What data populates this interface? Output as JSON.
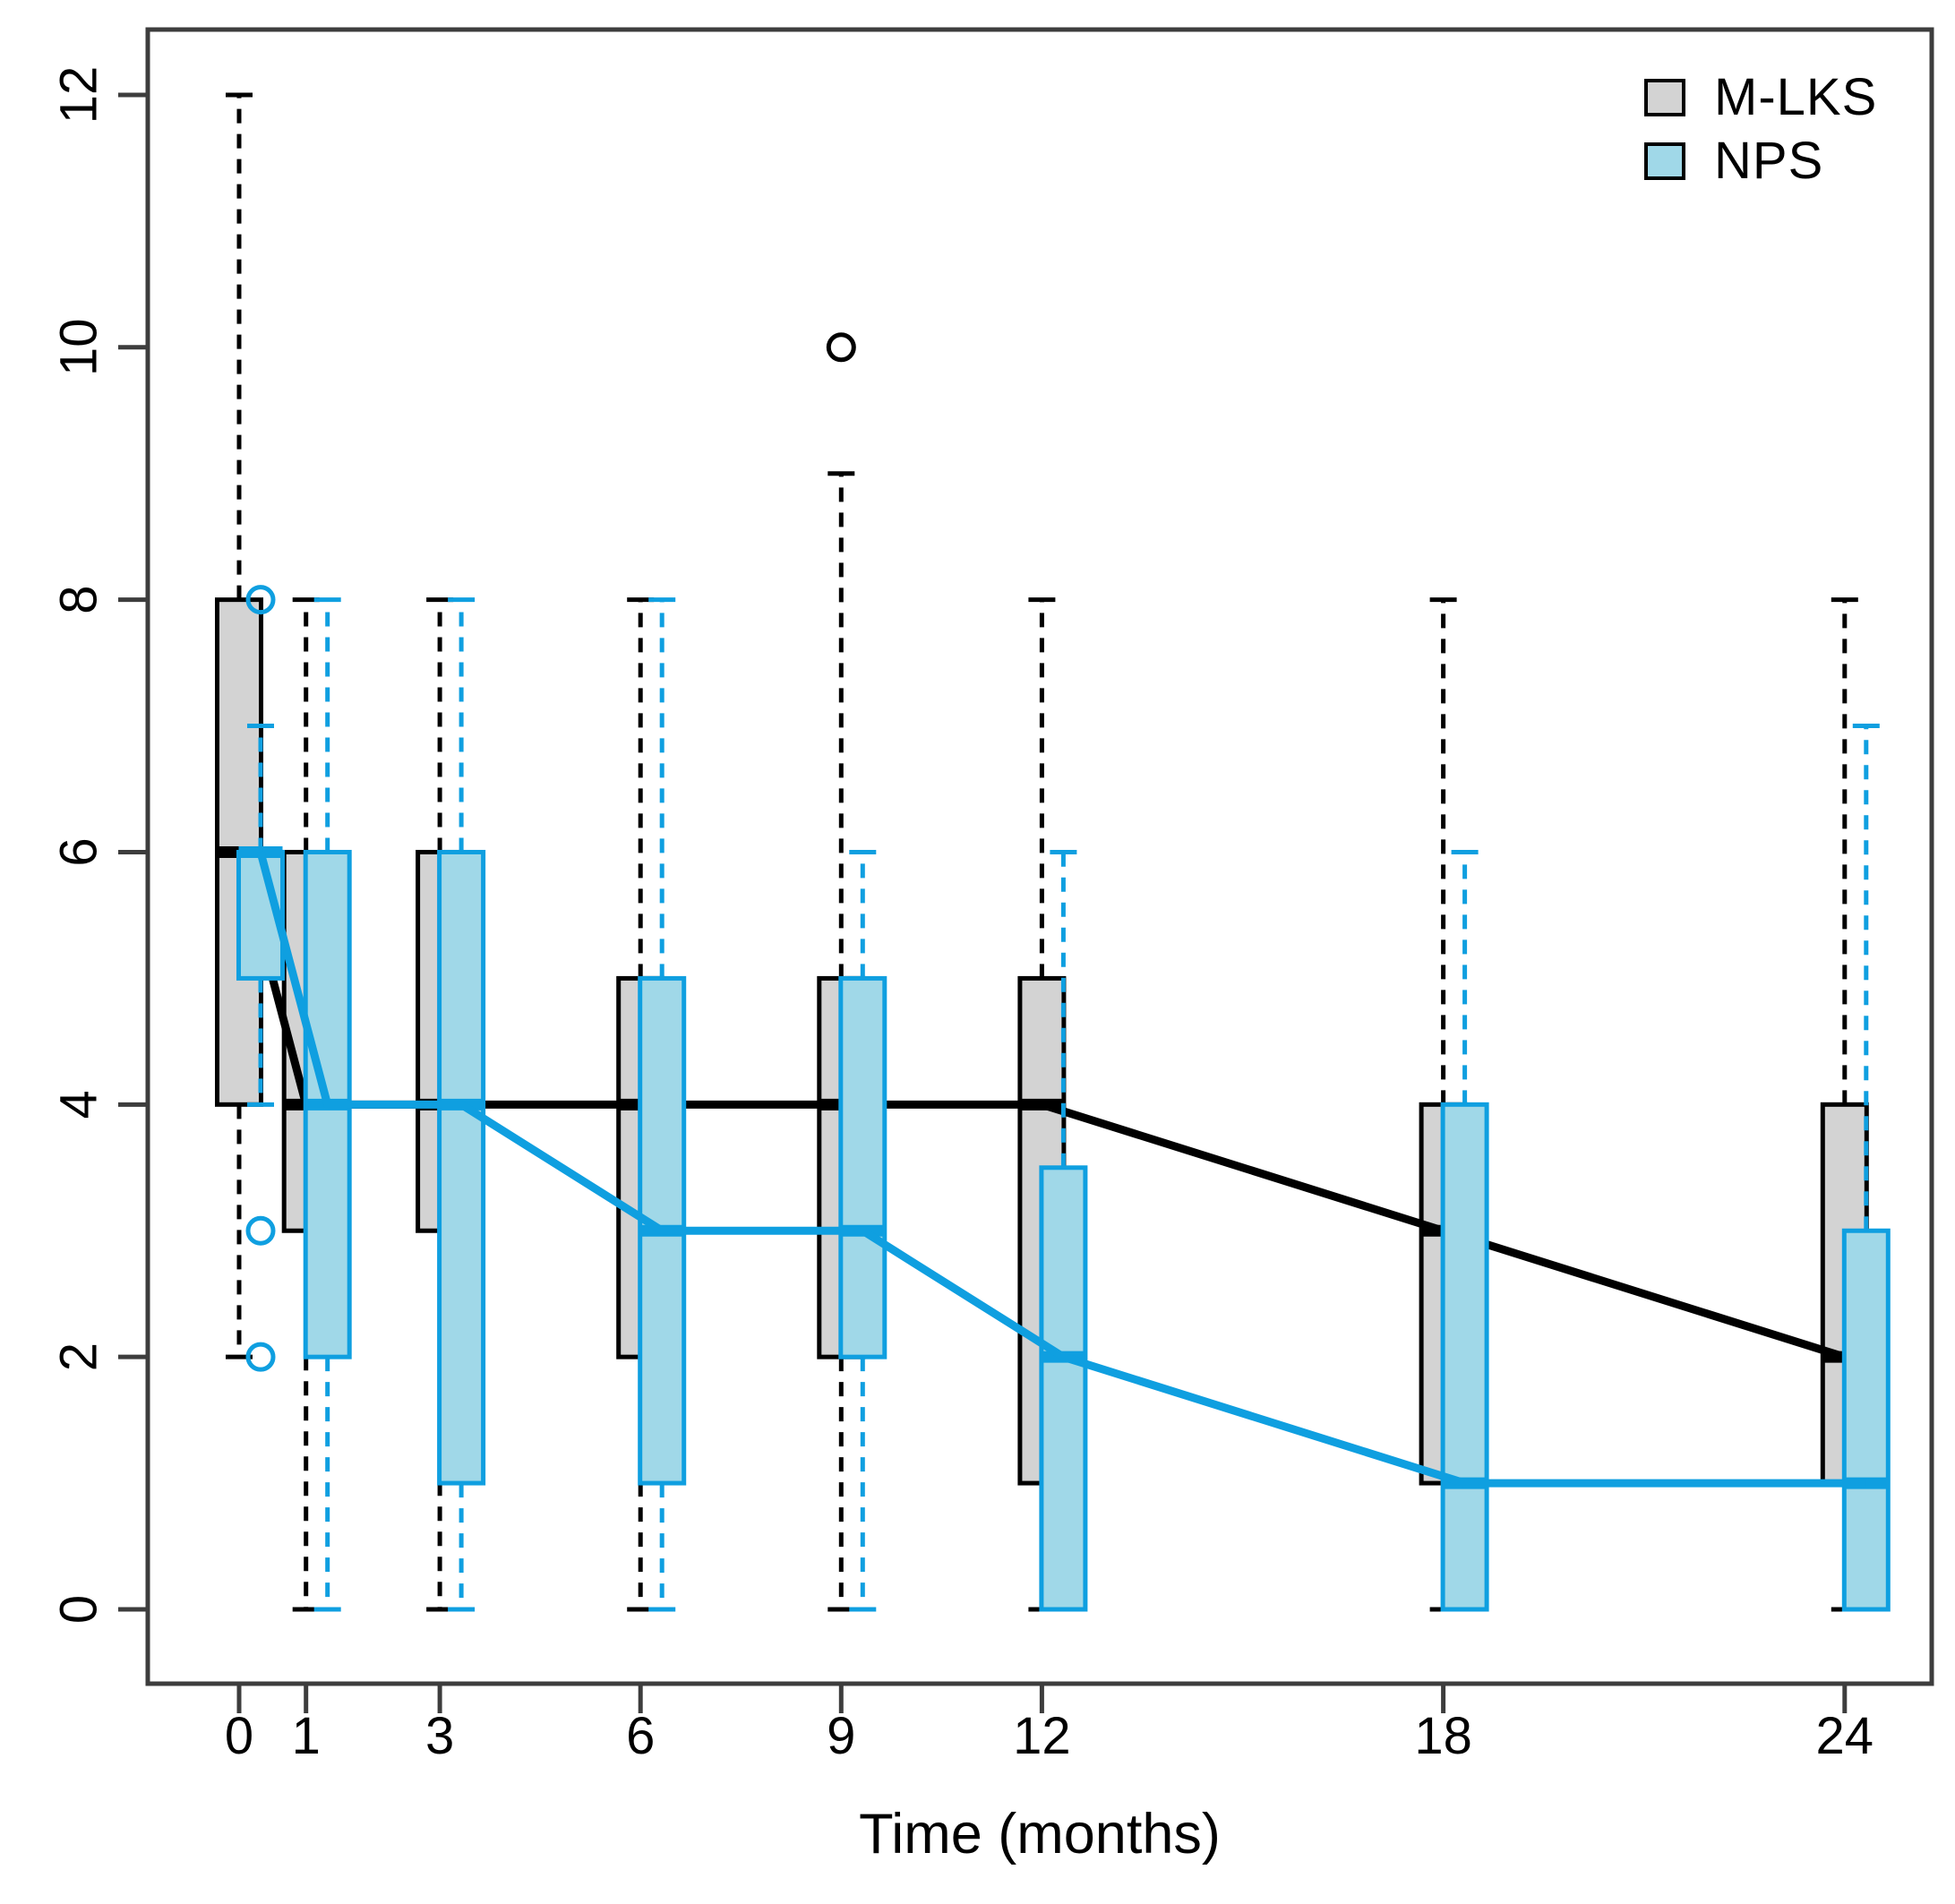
{
  "chart_data": {
    "type": "boxplot",
    "title": "",
    "xlabel": "Time (months)",
    "ylabel": "",
    "ylim": [
      0,
      12
    ],
    "yticks": [
      0,
      2,
      4,
      6,
      8,
      10,
      12
    ],
    "xticks": [
      0,
      1,
      3,
      6,
      9,
      12,
      18,
      24
    ],
    "grid": false,
    "legend_position": "top-right",
    "axis_color": "#3d3d3d",
    "series": [
      {
        "name": "M-LKS",
        "box_fill": "#d3d3d3",
        "line_color": "#000000",
        "boxes": [
          {
            "month": 0,
            "whisker_low": 2,
            "q1": 4,
            "median": 6,
            "q3": 8,
            "whisker_high": 12,
            "outliers": []
          },
          {
            "month": 1,
            "whisker_low": 0,
            "q1": 3,
            "median": 4,
            "q3": 6,
            "whisker_high": 8,
            "outliers": []
          },
          {
            "month": 3,
            "whisker_low": 0,
            "q1": 3,
            "median": 4,
            "q3": 6,
            "whisker_high": 8,
            "outliers": []
          },
          {
            "month": 6,
            "whisker_low": 0,
            "q1": 2,
            "median": 4,
            "q3": 5,
            "whisker_high": 8,
            "outliers": []
          },
          {
            "month": 9,
            "whisker_low": 0,
            "q1": 2,
            "median": 4,
            "q3": 5,
            "whisker_high": 9,
            "outliers": [
              10
            ]
          },
          {
            "month": 12,
            "whisker_low": 0,
            "q1": 1,
            "median": 4,
            "q3": 5,
            "whisker_high": 8,
            "outliers": []
          },
          {
            "month": 18,
            "whisker_low": 0,
            "q1": 1,
            "median": 3,
            "q3": 4,
            "whisker_high": 8,
            "outliers": []
          },
          {
            "month": 24,
            "whisker_low": 0,
            "q1": 1,
            "median": 2,
            "q3": 4,
            "whisker_high": 8,
            "outliers": []
          }
        ]
      },
      {
        "name": "NPS",
        "box_fill": "#a0d8e8",
        "line_color": "#0f9fe0",
        "boxes": [
          {
            "month": 0,
            "whisker_low": 4,
            "q1": 5,
            "median": 6,
            "q3": 6,
            "whisker_high": 7,
            "outliers": [
              8,
              3,
              2
            ]
          },
          {
            "month": 1,
            "whisker_low": 0,
            "q1": 2,
            "median": 4,
            "q3": 6,
            "whisker_high": 8,
            "outliers": []
          },
          {
            "month": 3,
            "whisker_low": 0,
            "q1": 1,
            "median": 4,
            "q3": 6,
            "whisker_high": 8,
            "outliers": []
          },
          {
            "month": 6,
            "whisker_low": 0,
            "q1": 1,
            "median": 3,
            "q3": 5,
            "whisker_high": 8,
            "outliers": []
          },
          {
            "month": 9,
            "whisker_low": 0,
            "q1": 2,
            "median": 3,
            "q3": 5,
            "whisker_high": 6,
            "outliers": []
          },
          {
            "month": 12,
            "whisker_low": 0,
            "q1": 0,
            "median": 2,
            "q3": 3.5,
            "whisker_high": 6,
            "outliers": []
          },
          {
            "month": 18,
            "whisker_low": 0,
            "q1": 0,
            "median": 1,
            "q3": 4,
            "whisker_high": 6,
            "outliers": []
          },
          {
            "month": 24,
            "whisker_low": 0,
            "q1": 0,
            "median": 1,
            "q3": 3,
            "whisker_high": 7,
            "outliers": []
          }
        ]
      }
    ]
  }
}
